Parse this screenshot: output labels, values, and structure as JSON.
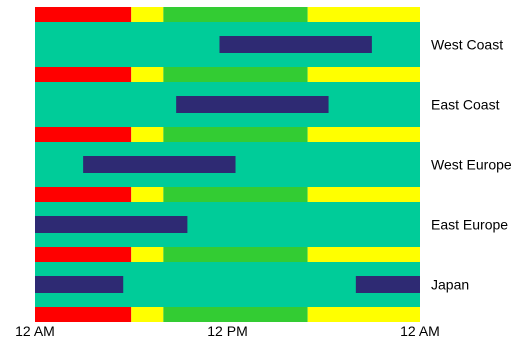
{
  "chart_data": {
    "type": "bar",
    "title": "",
    "xlabel": "",
    "ylabel": "",
    "x_unit": "hour",
    "xlim": [
      0,
      24
    ],
    "x_ticks": [
      {
        "value": 0,
        "label": "12 AM"
      },
      {
        "value": 12,
        "label": "12 PM"
      },
      {
        "value": 24,
        "label": "12 AM"
      }
    ],
    "time_bands": [
      {
        "start": 0,
        "end": 6,
        "color": "#ff0000"
      },
      {
        "start": 6,
        "end": 8,
        "color": "#ffff00"
      },
      {
        "start": 8,
        "end": 17,
        "color": "#33cc33"
      },
      {
        "start": 17,
        "end": 24,
        "color": "#ffff00"
      }
    ],
    "row_background": "#00cc99",
    "bar_color": "#2e2a73",
    "regions": [
      {
        "name": "West Coast",
        "intervals": [
          [
            11.5,
            21
          ]
        ]
      },
      {
        "name": "East Coast",
        "intervals": [
          [
            8.8,
            18.3
          ]
        ]
      },
      {
        "name": "West Europe",
        "intervals": [
          [
            3,
            12.5
          ]
        ]
      },
      {
        "name": "East Europe",
        "intervals": [
          [
            0,
            9.5
          ]
        ]
      },
      {
        "name": "Japan",
        "intervals": [
          [
            0,
            5.5
          ],
          [
            20,
            24
          ]
        ]
      }
    ]
  }
}
